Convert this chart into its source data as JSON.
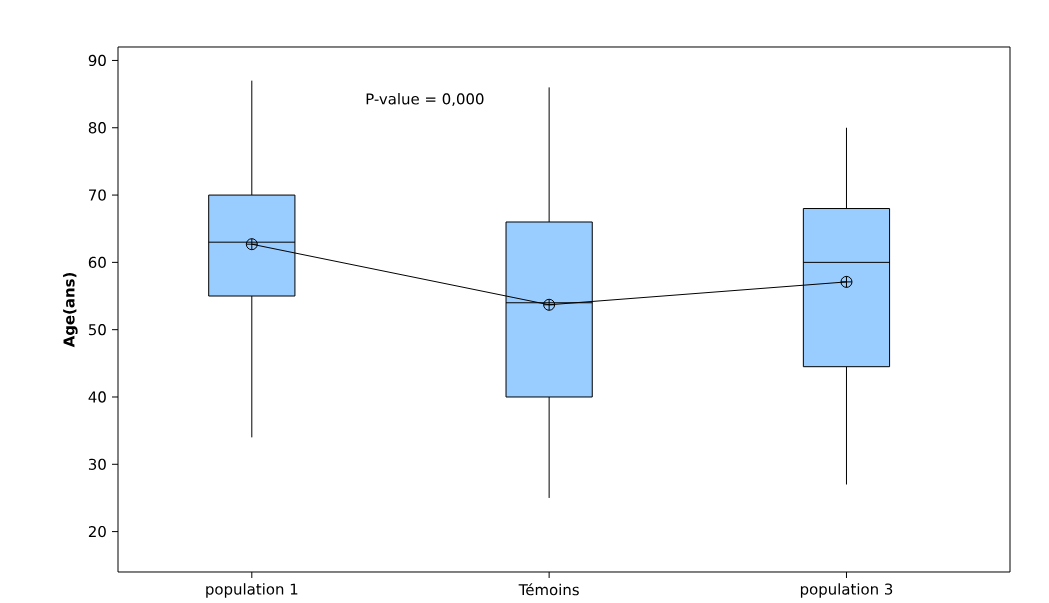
{
  "chart_data": {
    "type": "box",
    "ylabel": "Age(ans)",
    "categories": [
      "population 1",
      "Témoins",
      "population 3"
    ],
    "color": "#99ccff",
    "boxes": [
      {
        "low": 34,
        "q1": 55,
        "median": 63,
        "q3": 70,
        "high": 87
      },
      {
        "low": 25,
        "q1": 40,
        "median": 54,
        "q3": 66,
        "high": 86
      },
      {
        "low": 27,
        "q1": 44.5,
        "median": 60,
        "q3": 68,
        "high": 80
      }
    ],
    "series": [
      {
        "type": "line",
        "values": [
          62.7,
          53.7,
          57.1
        ],
        "color": "#000000",
        "marker": "cross"
      }
    ],
    "ylim": [
      14,
      92
    ],
    "yticks": [
      20,
      30,
      40,
      50,
      60,
      70,
      80,
      90
    ],
    "annotations": [
      "P-value = 0,000"
    ]
  }
}
